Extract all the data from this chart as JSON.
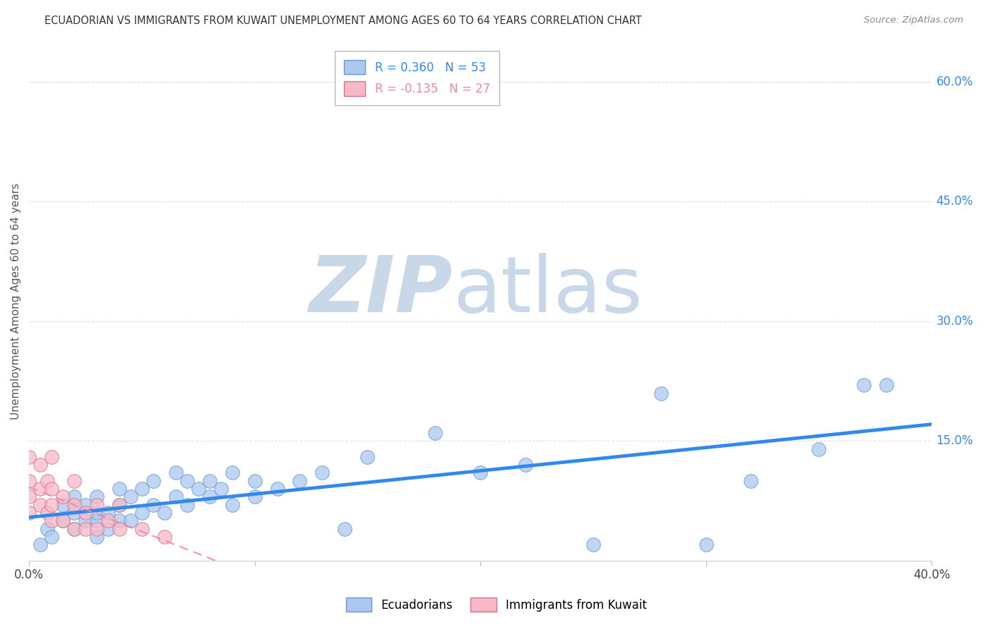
{
  "title": "ECUADORIAN VS IMMIGRANTS FROM KUWAIT UNEMPLOYMENT AMONG AGES 60 TO 64 YEARS CORRELATION CHART",
  "source": "Source: ZipAtlas.com",
  "ylabel": "Unemployment Among Ages 60 to 64 years",
  "xlim": [
    0.0,
    0.4
  ],
  "ylim": [
    -0.02,
    0.65
  ],
  "ylim_plot": [
    0.0,
    0.65
  ],
  "xticks": [
    0.0,
    0.1,
    0.2,
    0.3,
    0.4
  ],
  "xtick_labels": [
    "0.0%",
    "",
    "",
    "",
    "40.0%"
  ],
  "right_ytick_vals": [
    0.0,
    0.15,
    0.3,
    0.45,
    0.6
  ],
  "right_ytick_labels": [
    "",
    "15.0%",
    "30.0%",
    "45.0%",
    "60.0%"
  ],
  "watermark_zip": "ZIP",
  "watermark_atlas": "atlas",
  "watermark_color": "#c8d8e8",
  "background_color": "#ffffff",
  "grid_color": "#dddddd",
  "blue_R": 0.36,
  "blue_N": 53,
  "pink_R": -0.135,
  "pink_N": 27,
  "blue_color": "#aac8f0",
  "blue_line_color": "#3388ee",
  "blue_edge_color": "#6699cc",
  "pink_color": "#f8b8c8",
  "pink_line_color": "#ee8899",
  "pink_edge_color": "#cc7788",
  "blue_scatter_x": [
    0.005,
    0.008,
    0.01,
    0.015,
    0.015,
    0.02,
    0.02,
    0.02,
    0.025,
    0.025,
    0.03,
    0.03,
    0.03,
    0.03,
    0.035,
    0.035,
    0.04,
    0.04,
    0.04,
    0.045,
    0.045,
    0.05,
    0.05,
    0.055,
    0.055,
    0.06,
    0.065,
    0.065,
    0.07,
    0.07,
    0.075,
    0.08,
    0.08,
    0.085,
    0.09,
    0.09,
    0.1,
    0.1,
    0.11,
    0.12,
    0.13,
    0.14,
    0.15,
    0.18,
    0.2,
    0.22,
    0.25,
    0.28,
    0.3,
    0.32,
    0.35,
    0.37,
    0.38
  ],
  "blue_scatter_y": [
    0.02,
    0.04,
    0.03,
    0.05,
    0.07,
    0.04,
    0.06,
    0.08,
    0.05,
    0.07,
    0.03,
    0.05,
    0.06,
    0.08,
    0.04,
    0.06,
    0.05,
    0.07,
    0.09,
    0.05,
    0.08,
    0.06,
    0.09,
    0.07,
    0.1,
    0.06,
    0.08,
    0.11,
    0.07,
    0.1,
    0.09,
    0.08,
    0.1,
    0.09,
    0.07,
    0.11,
    0.08,
    0.1,
    0.09,
    0.1,
    0.11,
    0.04,
    0.13,
    0.16,
    0.11,
    0.12,
    0.02,
    0.21,
    0.02,
    0.1,
    0.14,
    0.22,
    0.22
  ],
  "pink_scatter_x": [
    0.0,
    0.0,
    0.0,
    0.0,
    0.005,
    0.005,
    0.005,
    0.008,
    0.008,
    0.01,
    0.01,
    0.01,
    0.01,
    0.015,
    0.015,
    0.02,
    0.02,
    0.02,
    0.025,
    0.025,
    0.03,
    0.03,
    0.035,
    0.04,
    0.04,
    0.05,
    0.06
  ],
  "pink_scatter_y": [
    0.06,
    0.08,
    0.1,
    0.13,
    0.07,
    0.09,
    0.12,
    0.06,
    0.1,
    0.05,
    0.07,
    0.09,
    0.13,
    0.05,
    0.08,
    0.04,
    0.07,
    0.1,
    0.04,
    0.06,
    0.04,
    0.07,
    0.05,
    0.04,
    0.07,
    0.04,
    0.03
  ]
}
